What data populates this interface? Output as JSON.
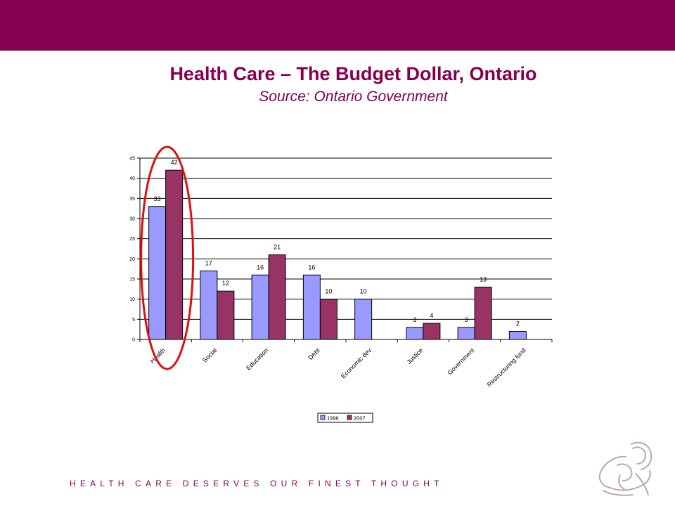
{
  "header": {
    "accent_color": "#850050"
  },
  "slide": {
    "title": "Health Care – The Budget Dollar, Ontario",
    "subtitle": "Source: Ontario Government",
    "tagline": "HEALTH CARE DESERVES OUR FINEST THOUGHT",
    "logo_icon": "mother-child-logo-icon"
  },
  "chart_data": {
    "type": "bar",
    "title": "",
    "xlabel": "",
    "ylabel": "",
    "ylim": [
      0,
      45
    ],
    "yticks": [
      0,
      5,
      10,
      15,
      20,
      25,
      30,
      35,
      40,
      45
    ],
    "grid": true,
    "legend_position": "bottom",
    "categories": [
      "Health",
      "Social",
      "Education",
      "Debt",
      "Economic dev",
      "Justice",
      "Government",
      "Restructuring fund"
    ],
    "series": [
      {
        "name": "1996",
        "color": "#9999ff",
        "values": [
          33,
          17,
          16,
          16,
          10,
          3,
          3,
          2
        ]
      },
      {
        "name": "2007",
        "color": "#993366",
        "values": [
          42,
          12,
          21,
          10,
          null,
          4,
          13,
          null
        ]
      }
    ],
    "highlight": {
      "category": "Health",
      "shape": "ellipse",
      "color": "#dd1111"
    }
  }
}
